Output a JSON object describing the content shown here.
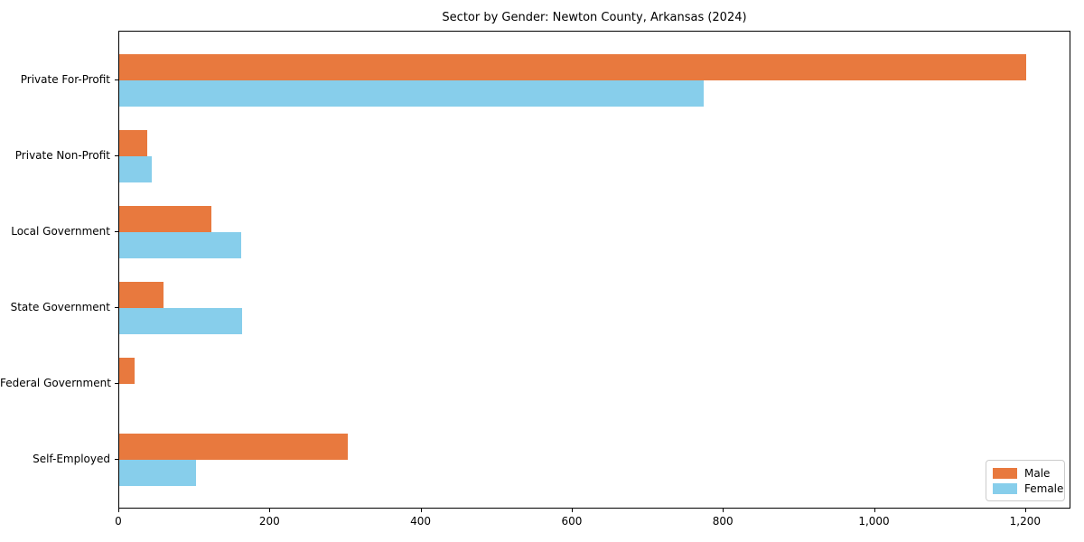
{
  "chart_data": {
    "type": "bar",
    "orientation": "horizontal",
    "title": "Sector by Gender: Newton County, Arkansas (2024)",
    "categories": [
      "Private For-Profit",
      "Private Non-Profit",
      "Local Government",
      "State Government",
      "Federal Government",
      "Self-Employed"
    ],
    "series": [
      {
        "name": "Male",
        "color": "#E8793E",
        "values": [
          1200,
          37,
          122,
          59,
          20,
          302
        ]
      },
      {
        "name": "Female",
        "color": "#87CEEB",
        "values": [
          773,
          43,
          161,
          163,
          0,
          102
        ]
      }
    ],
    "xlabel": "",
    "ylabel": "",
    "xlim": [
      0,
      1260
    ],
    "xticks": [
      0,
      200,
      400,
      600,
      800,
      1000,
      1200
    ],
    "xtick_labels": [
      "0",
      "200",
      "400",
      "600",
      "800",
      "1,000",
      "1,200"
    ],
    "grid": false,
    "legend_position": "lower right"
  }
}
